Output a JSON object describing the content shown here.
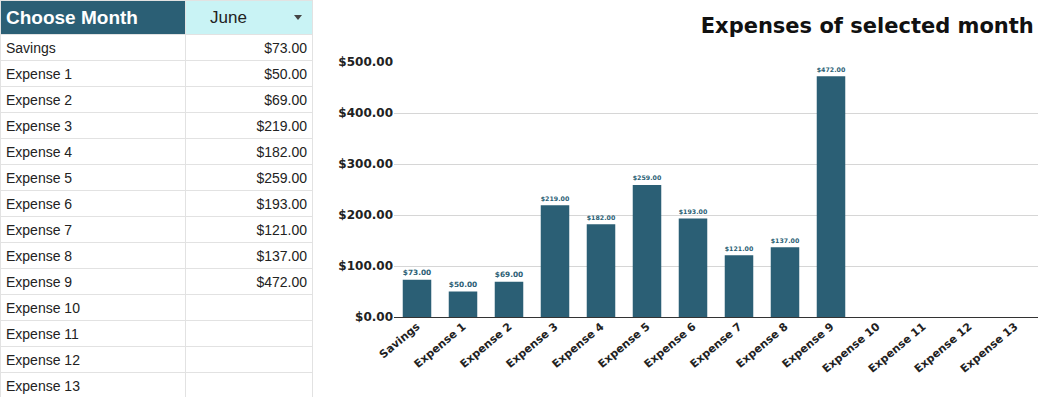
{
  "table": {
    "header": [
      "Choose Month",
      "June"
    ],
    "rows": [
      [
        "Savings",
        "$73.00"
      ],
      [
        "Expense 1",
        "$50.00"
      ],
      [
        "Expense 2",
        "$69.00"
      ],
      [
        "Expense 3",
        "$219.00"
      ],
      [
        "Expense 4",
        "$182.00"
      ],
      [
        "Expense 5",
        "$259.00"
      ],
      [
        "Expense 6",
        "$193.00"
      ],
      [
        "Expense 7",
        "$121.00"
      ],
      [
        "Expense 8",
        "$137.00"
      ],
      [
        "Expense 9",
        "$472.00"
      ],
      [
        "Expense 10",
        null
      ],
      [
        "Expense 11",
        null
      ],
      [
        "Expense 12",
        null
      ],
      [
        "Expense 13",
        null
      ]
    ]
  },
  "chart_data": {
    "type": "bar",
    "title": "Expenses of selected month",
    "categories": [
      "Savings",
      "Expense 1",
      "Expense 2",
      "Expense 3",
      "Expense 4",
      "Expense 5",
      "Expense 6",
      "Expense 7",
      "Expense 8",
      "Expense 9",
      "Expense 10",
      "Expense 11",
      "Expense 12",
      "Expense 13"
    ],
    "values": [
      73,
      50,
      69,
      219,
      182,
      259,
      193,
      121,
      137,
      472,
      null,
      null,
      null,
      null
    ],
    "value_labels": [
      "$73.00",
      "$50.00",
      "$69.00",
      "$219.00",
      "$182.00",
      "$259.00",
      "$193.00",
      "$121.00",
      "$137.00",
      "$472.00",
      null,
      null,
      null,
      null
    ],
    "color": "#2b5f75",
    "ylim": [
      0,
      500
    ],
    "yticks": [
      {
        "value": 0,
        "label": "$0.00"
      },
      {
        "value": 100,
        "label": "$100.00"
      },
      {
        "value": 200,
        "label": "$200.00"
      },
      {
        "value": 300,
        "label": "$300.00"
      },
      {
        "value": 400,
        "label": "$400.00"
      },
      {
        "value": 500,
        "label": "$500.00"
      }
    ],
    "grid": true,
    "data_labels": true
  }
}
